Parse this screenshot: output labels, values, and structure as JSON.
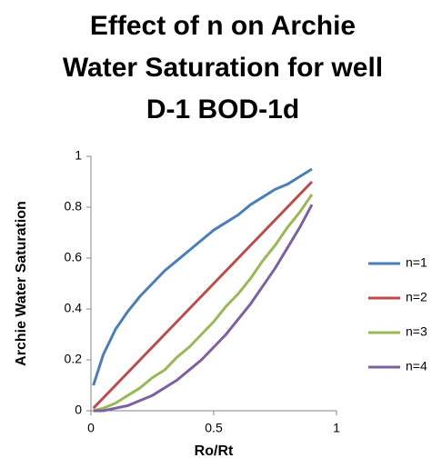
{
  "chart_data": {
    "type": "line",
    "title": [
      "Effect of n on Archie",
      "Water Saturation for well",
      "D-1 BOD-1d"
    ],
    "x_label": "Ro/Rt",
    "y_label": "Archie Water Saturation",
    "x": [
      0.01,
      0.05,
      0.1,
      0.15,
      0.2,
      0.25,
      0.3,
      0.35,
      0.4,
      0.45,
      0.5,
      0.55,
      0.6,
      0.65,
      0.7,
      0.75,
      0.8,
      0.85,
      0.9
    ],
    "series": [
      {
        "name": "n=1",
        "color": "#4a7ebb",
        "values": [
          0.1,
          0.22,
          0.32,
          0.39,
          0.45,
          0.5,
          0.55,
          0.59,
          0.63,
          0.67,
          0.71,
          0.74,
          0.77,
          0.81,
          0.84,
          0.87,
          0.89,
          0.92,
          0.95
        ]
      },
      {
        "name": "n=2",
        "color": "#be4b48",
        "values": [
          0.01,
          0.05,
          0.1,
          0.15,
          0.2,
          0.25,
          0.3,
          0.35,
          0.4,
          0.45,
          0.5,
          0.55,
          0.6,
          0.65,
          0.7,
          0.75,
          0.8,
          0.85,
          0.9
        ]
      },
      {
        "name": "n=3",
        "color": "#98b954",
        "values": [
          0,
          0.01,
          0.03,
          0.06,
          0.09,
          0.13,
          0.16,
          0.21,
          0.25,
          0.3,
          0.35,
          0.41,
          0.46,
          0.52,
          0.59,
          0.65,
          0.72,
          0.78,
          0.85
        ]
      },
      {
        "name": "n=4",
        "color": "#7d60a0",
        "values": [
          0,
          0,
          0.01,
          0.02,
          0.04,
          0.06,
          0.09,
          0.12,
          0.16,
          0.2,
          0.25,
          0.3,
          0.36,
          0.42,
          0.49,
          0.56,
          0.64,
          0.72,
          0.81
        ]
      }
    ],
    "xlim": [
      0,
      1
    ],
    "xticks": [
      0,
      0.5,
      1
    ],
    "ylim": [
      0,
      1
    ],
    "yticks": [
      0,
      0.2,
      0.4,
      0.6,
      0.8,
      1
    ],
    "grid": false,
    "legend": "right"
  }
}
